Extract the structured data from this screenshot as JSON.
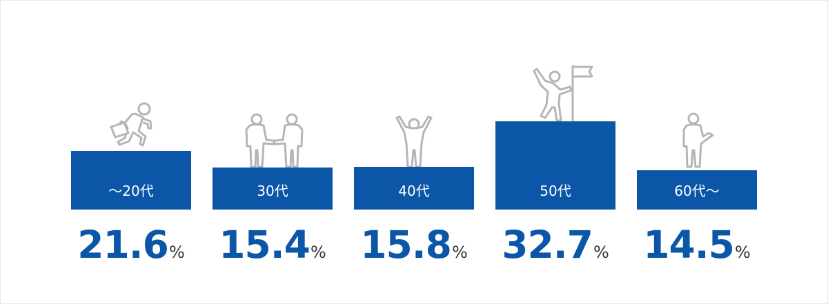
{
  "colors": {
    "bar": "#0b56a6",
    "value_text": "#0b56a6",
    "unit_text": "#333333",
    "bar_label_text": "#ffffff",
    "icon_stroke": "#b5b5b5"
  },
  "chart_data": {
    "type": "bar",
    "categories": [
      "～20代",
      "30代",
      "40代",
      "50代",
      "60代～"
    ],
    "values": [
      21.6,
      15.4,
      15.8,
      32.7,
      14.5
    ],
    "value_labels": [
      "21.6",
      "15.4",
      "15.8",
      "32.7",
      "14.5"
    ],
    "unit": "%",
    "icons": [
      "running-businessman-icon",
      "handshake-people-icon",
      "raised-arms-person-icon",
      "flag-climber-icon",
      "waving-person-icon"
    ],
    "title": "",
    "xlabel": "",
    "ylabel": "",
    "grid": false,
    "legend": "none"
  }
}
